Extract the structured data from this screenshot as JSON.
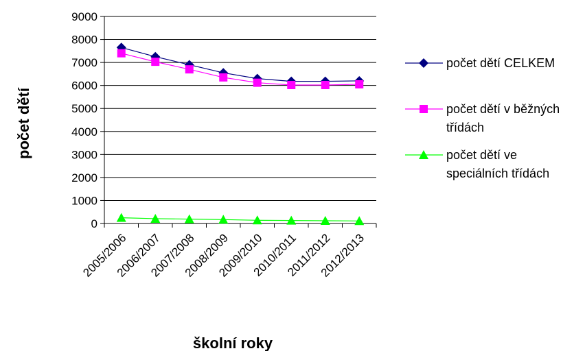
{
  "chart_data": {
    "type": "line",
    "title": "",
    "xlabel": "školní roky",
    "ylabel": "počet dětí",
    "categories": [
      "2005/2006",
      "2006/2007",
      "2007/2008",
      "2008/2009",
      "2009/2010",
      "2010/2011",
      "2011/2012",
      "2012/2013"
    ],
    "ylim": [
      0,
      9000
    ],
    "yticks": [
      "0",
      "1000",
      "2000",
      "3000",
      "4000",
      "5000",
      "6000",
      "7000",
      "8000",
      "9000"
    ],
    "grid": true,
    "legend_position": "right",
    "series": [
      {
        "name": "počet dětí CELKEM",
        "legend_lines": [
          "počet dětí CELKEM"
        ],
        "color": "#000080",
        "marker": "diamond",
        "values": [
          7650,
          7250,
          6900,
          6550,
          6300,
          6180,
          6180,
          6200
        ]
      },
      {
        "name": "počet dětí v běžných třídách",
        "legend_lines": [
          "počet dětí v běžných",
          "třídách"
        ],
        "color": "#ff00ff",
        "marker": "square",
        "values": [
          7400,
          7030,
          6700,
          6350,
          6120,
          6020,
          6020,
          6050
        ]
      },
      {
        "name": "počet dětí ve speciálních třídách",
        "legend_lines": [
          "počet dětí ve",
          "speciálních třídách"
        ],
        "color": "#00ff00",
        "marker": "triangle",
        "values": [
          250,
          210,
          190,
          170,
          140,
          130,
          120,
          110
        ]
      }
    ]
  }
}
